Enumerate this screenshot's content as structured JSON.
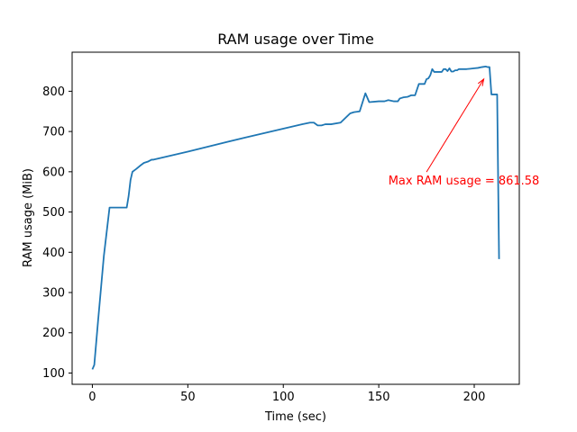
{
  "chart_data": {
    "type": "line",
    "title": "RAM usage over Time",
    "xlabel": "Time (sec)",
    "ylabel": "RAM usage (MiB)",
    "xlim": [
      -10.6,
      223.6
    ],
    "ylim": [
      72,
      897
    ],
    "xticks": [
      0,
      50,
      100,
      150,
      200
    ],
    "yticks": [
      100,
      200,
      300,
      400,
      500,
      600,
      700,
      800
    ],
    "grid": false,
    "line_color": "#1f77b4",
    "series": [
      {
        "x": [
          0,
          1,
          3,
          6,
          9,
          12,
          15,
          18,
          19,
          20,
          21,
          23,
          25,
          27,
          29,
          31,
          32,
          50,
          80,
          110,
          114,
          116,
          118,
          120,
          122,
          125,
          130,
          135,
          137,
          140,
          142,
          143,
          145,
          150,
          152,
          153,
          155,
          158,
          160,
          161,
          163,
          165,
          167,
          169,
          171,
          172,
          174,
          175,
          176,
          177,
          178,
          179,
          180,
          182,
          183,
          184,
          185,
          186,
          187,
          188,
          189,
          190,
          191,
          192,
          194,
          196,
          198,
          200,
          202,
          204,
          206,
          207,
          208,
          209,
          210,
          211,
          212,
          213
        ],
        "y": [
          109,
          120,
          230,
          390,
          511,
          511,
          511,
          511,
          540,
          580,
          600,
          607,
          615,
          622,
          625,
          630,
          630,
          650,
          685,
          718,
          722,
          722,
          715,
          715,
          718,
          718,
          722,
          745,
          748,
          750,
          780,
          795,
          773,
          775,
          775,
          775,
          778,
          775,
          775,
          782,
          785,
          786,
          790,
          790,
          818,
          818,
          818,
          830,
          832,
          840,
          855,
          848,
          848,
          848,
          848,
          855,
          855,
          850,
          857,
          849,
          849,
          852,
          852,
          855,
          855,
          855,
          856,
          857,
          858,
          860,
          861.58,
          860,
          860,
          792,
          792,
          792,
          792,
          383
        ]
      }
    ],
    "annotation": {
      "text": "Max RAM usage = 861.58",
      "color": "#ff0000",
      "xy": [
        205,
        861.58
      ],
      "xytext": [
        155,
        568
      ]
    }
  }
}
